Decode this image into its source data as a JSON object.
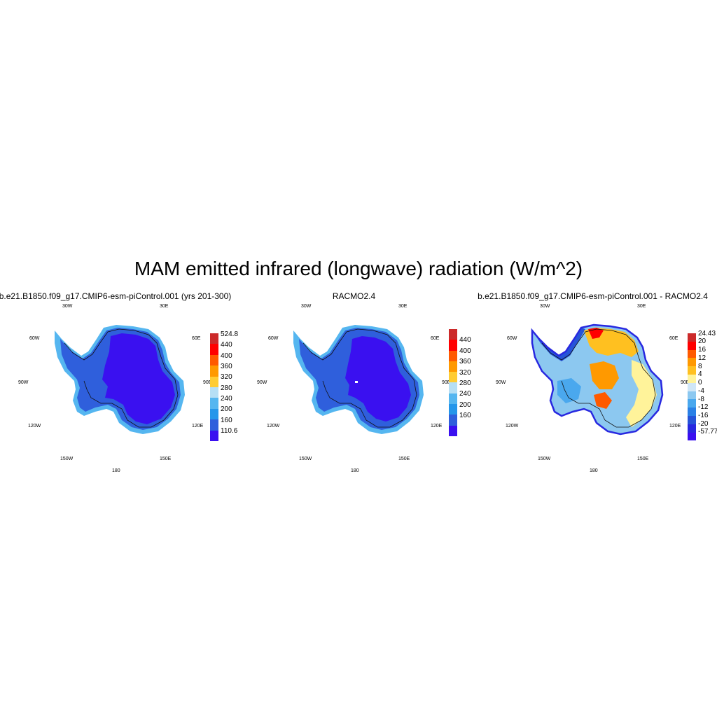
{
  "title": "MAM emitted infrared (longwave) radiation (W/m^2)",
  "longitude_labels": {
    "w30": "30W",
    "e30": "30E",
    "w60": "60W",
    "e60": "60E",
    "w90": "90W",
    "e90": "90E",
    "w120": "120W",
    "e120": "120E",
    "w150": "150W",
    "e150": "150E",
    "s180": "180"
  },
  "panels": [
    {
      "title": "b.e21.B1850.f09_g17.CMIP6-esm-piControl.001 (yrs 201-300)",
      "colorbar": {
        "labels": [
          "524.8",
          "440",
          "400",
          "360",
          "320",
          "280",
          "240",
          "200",
          "160",
          "110.6"
        ],
        "colors": [
          "#cc2a2a",
          "#ff0000",
          "#ff5a00",
          "#ff9900",
          "#ffcc33",
          "#b6dff5",
          "#55b6f0",
          "#2596ea",
          "#2f5fdc",
          "#3a10f0"
        ]
      }
    },
    {
      "title": "RACMO2.4",
      "colorbar": {
        "labels": [
          "440",
          "400",
          "360",
          "320",
          "280",
          "240",
          "200",
          "160"
        ],
        "colors": [
          "#cc2a2a",
          "#ff0000",
          "#ff5a00",
          "#ff9900",
          "#ffcc33",
          "#b6dff5",
          "#55b6f0",
          "#2596ea",
          "#2f5fdc",
          "#3a10f0"
        ]
      }
    },
    {
      "title": "b.e21.B1850.f09_g17.CMIP6-esm-piControl.001 - RACMO2.4",
      "colorbar": {
        "labels": [
          "24.43",
          "20",
          "16",
          "12",
          "8",
          "4",
          "0",
          "-4",
          "-8",
          "-12",
          "-16",
          "-20",
          "-57.77"
        ],
        "colors": [
          "#cc2a2a",
          "#ff0000",
          "#ff5a00",
          "#ff9900",
          "#ffc020",
          "#fff39a",
          "#cfe6f7",
          "#8cc8f0",
          "#4aa8ee",
          "#2a80e6",
          "#2654d8",
          "#2828e0",
          "#3a10f0"
        ]
      }
    }
  ]
}
